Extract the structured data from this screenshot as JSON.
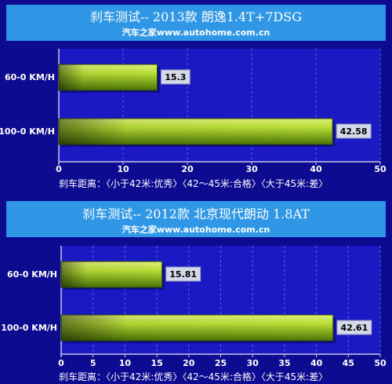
{
  "chart_data": [
    {
      "type": "bar",
      "orientation": "horizontal",
      "title": "刹车测试-- 2013款 朗逸1.4T+7DSG",
      "subtitle": "汽车之家www.autohome.com.cn",
      "categories": [
        "60-0 KM/H",
        "100-0 KM/H"
      ],
      "values": [
        15.3,
        42.58
      ],
      "value_labels": [
        "15.3",
        "42.58"
      ],
      "xlim": [
        0,
        50
      ],
      "xticks": [
        0,
        10,
        20,
        30,
        40,
        50
      ],
      "xtick_labels": [
        "0",
        "10",
        "20",
        "30",
        "40",
        "50"
      ],
      "footnote": "刹车距离：〈小于42米:优秀〉〈42～45米:合格〉〈大于45米:差〉",
      "grid": true
    },
    {
      "type": "bar",
      "orientation": "horizontal",
      "title": "刹车测试-- 2012款 北京现代朗动 1.8AT",
      "subtitle": "汽车之家www.autohome.com.cn",
      "categories": [
        "60-0 KM/H",
        "100-0 KM/H"
      ],
      "values": [
        15.81,
        42.61
      ],
      "value_labels": [
        "15.81",
        "42.61"
      ],
      "xlim": [
        0,
        50
      ],
      "xticks": [
        0,
        5,
        10,
        15,
        20,
        25,
        30,
        35,
        40,
        45,
        50
      ],
      "xtick_labels": [
        "0",
        "5",
        "10",
        "15",
        "20",
        "25",
        "30",
        "35",
        "40",
        "45",
        "50"
      ],
      "footnote": "刹车距离：〈小于42米:优秀〉〈42～45米:合格〉〈大于45米:差〉",
      "grid": true
    }
  ],
  "colors": {
    "background": "#0d0b8f",
    "title_box": "#2f97e6",
    "plot_area": "#1a19c4",
    "bar_light": "#c6e84a",
    "bar_dark": "#4f7a08",
    "value_label_bg": "#d4d8e8",
    "text": "#ffffff"
  }
}
